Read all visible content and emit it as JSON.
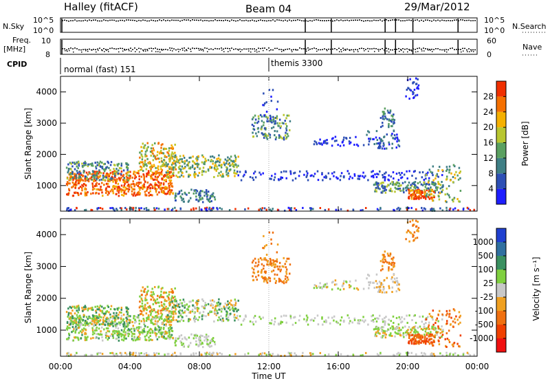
{
  "header": {
    "station": "Halley (fitACF)",
    "beam": "Beam 04",
    "date": "29/Mar/2012"
  },
  "strips": {
    "nsky_label": "N.Sky",
    "nsky_ticks": [
      "10^5",
      "10^0"
    ],
    "nsearch_label": "N.Search",
    "nsearch_ticks": [
      "10^5",
      "10^0"
    ],
    "freq_label": "Freq.",
    "freq_unit": "[MHz]",
    "freq_ticks": [
      "10",
      "8"
    ],
    "nave_label": "Nave",
    "nave_ticks": [
      "60",
      "0"
    ],
    "cpid_label": "CPID",
    "cpid_entries": [
      {
        "text": "normal (fast) 151",
        "start_hour": 0
      },
      {
        "text": "themis 3300",
        "start_hour": 12
      }
    ],
    "gap_hours": [
      14.1,
      15.6,
      18.7,
      19.3,
      20.3,
      22.9
    ]
  },
  "chart_data": [
    {
      "type": "heatmap",
      "name": "power",
      "ylabel": "Slant Range [km]",
      "x_ticks": [
        "00:00",
        "04:00",
        "08:00",
        "12:00",
        "16:00",
        "20:00",
        "00:00"
      ],
      "xlim_hours": [
        0,
        24
      ],
      "ylim_km": [
        180,
        4500
      ],
      "y_ticks": [
        1000,
        2000,
        3000,
        4000
      ],
      "colorbar": {
        "label": "Power [dB]",
        "ticks": [
          "4",
          "8",
          "12",
          "16",
          "20",
          "24",
          "28"
        ],
        "colors": [
          "#1e1eff",
          "#2d4fb5",
          "#3f7f85",
          "#5aa060",
          "#b8c630",
          "#f5b000",
          "#f57000",
          "#f03000"
        ]
      }
    },
    {
      "type": "heatmap",
      "name": "velocity",
      "ylabel": "Slant Range [km]",
      "x_ticks": [
        "00:00",
        "04:00",
        "08:00",
        "12:00",
        "16:00",
        "20:00",
        "00:00"
      ],
      "xlabel": "Time UT",
      "xlim_hours": [
        0,
        24
      ],
      "ylim_km": [
        180,
        4500
      ],
      "y_ticks": [
        1000,
        2000,
        3000,
        4000
      ],
      "colorbar": {
        "label": "Velocity [m s⁻¹]",
        "ticks": [
          "1000",
          "500",
          "100",
          "25",
          "-25",
          "-100",
          "-500",
          "-1000"
        ],
        "colors": [
          "#2040d0",
          "#3070a0",
          "#3a9060",
          "#80d040",
          "#c8c8c8",
          "#f0a020",
          "#f07010",
          "#f04000",
          "#f01010"
        ]
      }
    }
  ]
}
